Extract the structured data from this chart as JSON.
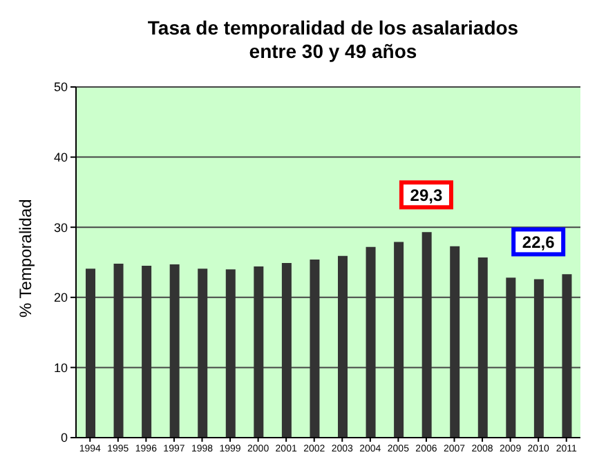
{
  "chart_data": {
    "type": "bar",
    "title": "Tasa de temporalidad de los asalariados\nentre 30 y 49 años",
    "ylabel": "% Temporalidad",
    "categories": [
      "1994",
      "1995",
      "1996",
      "1997",
      "1998",
      "1999",
      "2000",
      "2001",
      "2002",
      "2003",
      "2004",
      "2005",
      "2006",
      "2007",
      "2008",
      "2009",
      "2010",
      "2011"
    ],
    "values": [
      24.1,
      24.8,
      24.5,
      24.7,
      24.1,
      24.0,
      24.4,
      24.9,
      25.4,
      25.9,
      27.2,
      27.9,
      29.3,
      27.3,
      25.7,
      22.8,
      22.6,
      23.3
    ],
    "color": "#333333",
    "ylim": [
      0,
      50
    ],
    "yticks": [
      0,
      10,
      20,
      30,
      40,
      50
    ],
    "grid": "y",
    "annotations": [
      {
        "text": "29,3",
        "x": "2006",
        "y": 29.3
      },
      {
        "text": "22,6",
        "x": "2010",
        "y": 22.6
      }
    ]
  }
}
